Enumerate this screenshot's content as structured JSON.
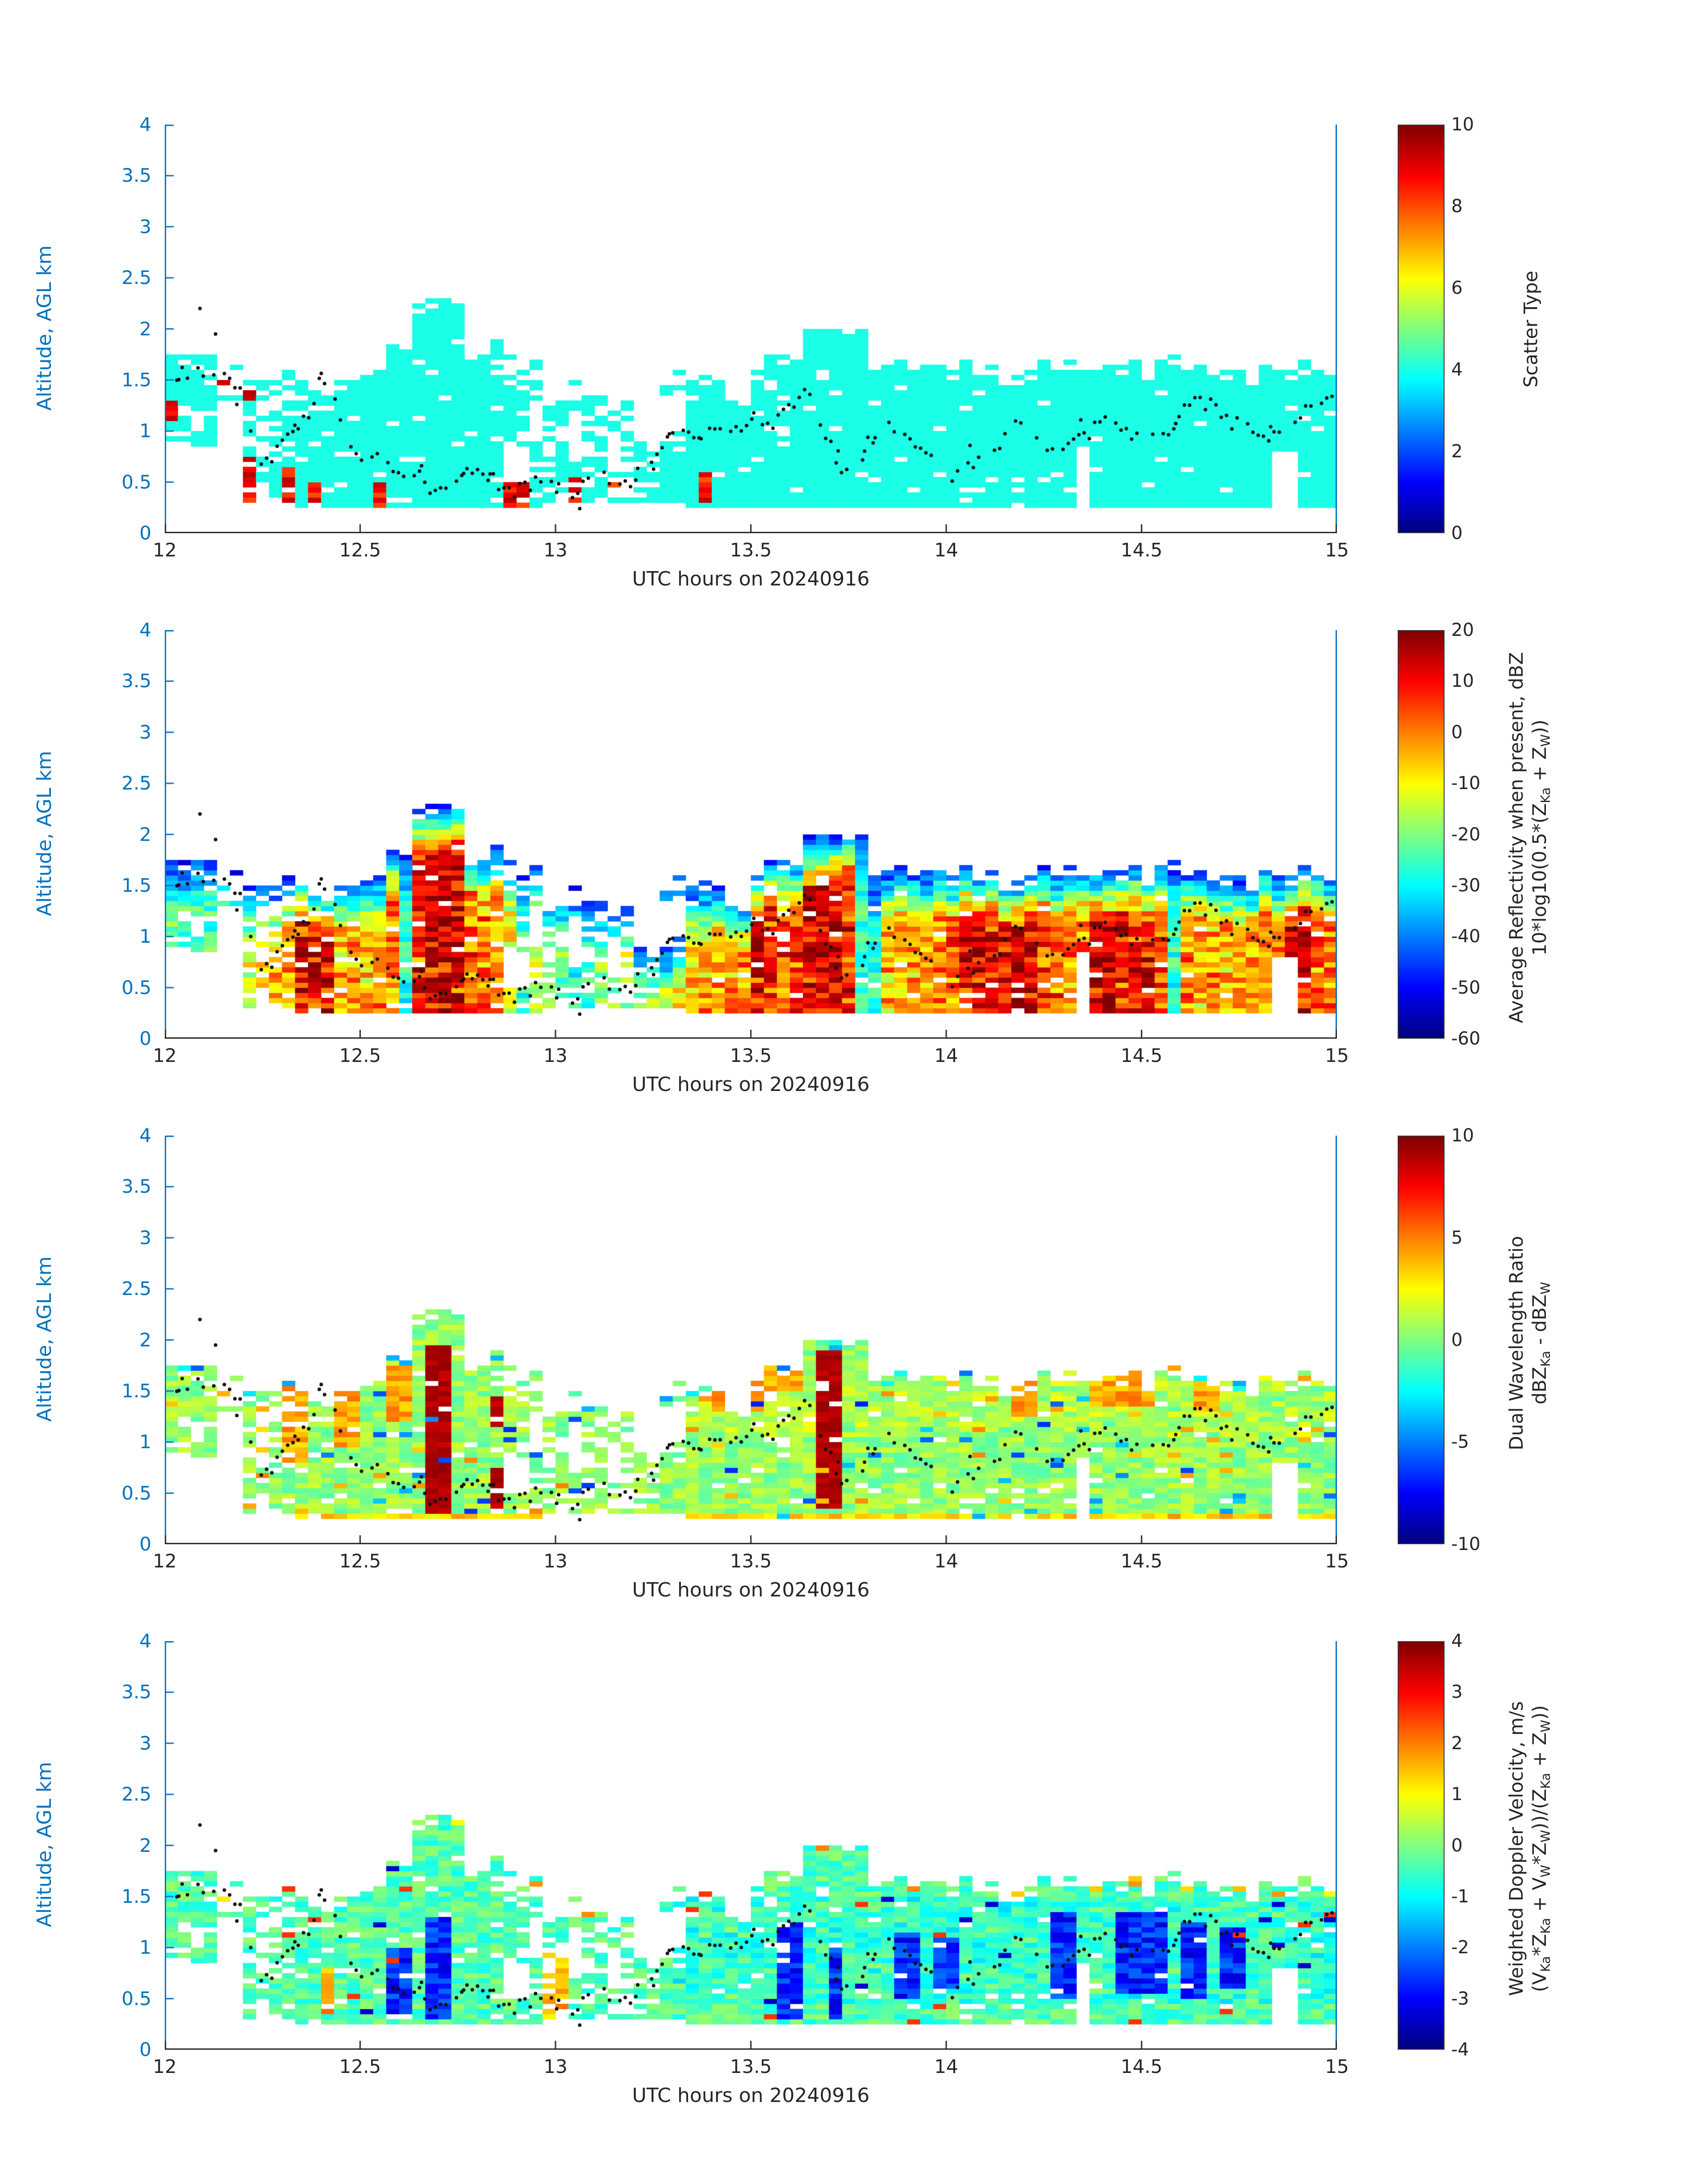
{
  "figure": {
    "xlabel": "UTC hours on 20240916",
    "ylabel": "Altitude, AGL km",
    "x_ticks": [
      12,
      12.5,
      13,
      13.5,
      14,
      14.5,
      15
    ],
    "y_ticks": [
      0,
      0.5,
      1,
      1.5,
      2,
      2.5,
      3,
      3.5,
      4
    ],
    "x_range": [
      12,
      15
    ],
    "y_range": [
      0,
      4
    ],
    "left_axis_color": "#0072BD",
    "bottom_axis_color": "#262626",
    "dot_color": "#111111",
    "background": "#ffffff"
  },
  "cloud": {
    "segments": [
      [
        12.0,
        12.13,
        0.85,
        1.85,
        0.82
      ],
      [
        12.13,
        12.2,
        1.3,
        1.78,
        0.3
      ],
      [
        12.2,
        12.3,
        0.3,
        1.65,
        0.55
      ],
      [
        12.3,
        12.56,
        0.25,
        1.62,
        0.88
      ],
      [
        12.56,
        12.63,
        0.25,
        1.95,
        0.9
      ],
      [
        12.63,
        12.77,
        0.25,
        2.35,
        0.93
      ],
      [
        12.77,
        12.88,
        0.25,
        1.95,
        0.9
      ],
      [
        12.88,
        12.98,
        0.25,
        1.78,
        0.72
      ],
      [
        12.98,
        13.08,
        0.28,
        1.55,
        0.62
      ],
      [
        13.08,
        13.2,
        0.3,
        1.4,
        0.5
      ],
      [
        13.2,
        13.34,
        0.28,
        1.05,
        0.8
      ],
      [
        13.24,
        13.44,
        1.35,
        1.62,
        0.55
      ],
      [
        13.34,
        13.5,
        0.25,
        1.5,
        0.95
      ],
      [
        13.5,
        13.62,
        0.25,
        1.78,
        0.96
      ],
      [
        13.62,
        13.8,
        0.25,
        2.1,
        0.96
      ],
      [
        13.8,
        14.2,
        0.25,
        1.72,
        0.96
      ],
      [
        14.2,
        14.6,
        0.25,
        1.75,
        0.96
      ],
      [
        14.6,
        15.0,
        0.25,
        1.72,
        0.96
      ]
    ],
    "holes": [
      [
        12.88,
        12.93,
        0.5,
        0.85
      ],
      [
        12.93,
        12.97,
        0.9,
        1.3
      ],
      [
        13.12,
        13.18,
        0.6,
        1.0
      ],
      [
        14.33,
        14.37,
        0.0,
        0.85
      ],
      [
        14.84,
        14.9,
        0.0,
        0.78
      ]
    ]
  },
  "dots": {
    "trace": [
      [
        12.0,
        1.25
      ],
      [
        12.04,
        1.55
      ],
      [
        12.08,
        1.6
      ],
      [
        12.12,
        1.55
      ],
      [
        12.16,
        1.6
      ],
      [
        12.2,
        1.3
      ],
      [
        12.24,
        0.6
      ],
      [
        12.28,
        0.75
      ],
      [
        12.32,
        1.0
      ],
      [
        12.36,
        1.1
      ],
      [
        12.4,
        1.5
      ],
      [
        12.44,
        1.25
      ],
      [
        12.48,
        0.85
      ],
      [
        12.52,
        0.7
      ],
      [
        12.56,
        0.8
      ],
      [
        12.6,
        0.55
      ],
      [
        12.64,
        0.6
      ],
      [
        12.68,
        0.45
      ],
      [
        12.72,
        0.5
      ],
      [
        12.76,
        0.55
      ],
      [
        12.8,
        0.65
      ],
      [
        12.84,
        0.55
      ],
      [
        12.88,
        0.4
      ],
      [
        12.92,
        0.45
      ],
      [
        12.96,
        0.5
      ],
      [
        13.0,
        0.45
      ],
      [
        13.04,
        0.35
      ],
      [
        13.08,
        0.5
      ],
      [
        13.12,
        0.55
      ],
      [
        13.16,
        0.5
      ],
      [
        13.2,
        0.45
      ],
      [
        13.24,
        0.7
      ],
      [
        13.28,
        0.9
      ],
      [
        13.32,
        1.0
      ],
      [
        13.36,
        0.95
      ],
      [
        13.4,
        1.0
      ],
      [
        13.44,
        1.0
      ],
      [
        13.48,
        1.05
      ],
      [
        13.52,
        1.05
      ],
      [
        13.56,
        1.1
      ],
      [
        13.6,
        1.25
      ],
      [
        13.64,
        1.4
      ],
      [
        13.68,
        1.1
      ],
      [
        13.72,
        0.7
      ],
      [
        13.76,
        0.55
      ],
      [
        13.8,
        0.9
      ],
      [
        13.84,
        1.05
      ],
      [
        13.88,
        0.95
      ],
      [
        13.92,
        0.85
      ],
      [
        13.96,
        0.7
      ],
      [
        14.0,
        0.55
      ],
      [
        14.04,
        0.6
      ],
      [
        14.08,
        0.75
      ],
      [
        14.12,
        0.8
      ],
      [
        14.16,
        1.0
      ],
      [
        14.2,
        1.1
      ],
      [
        14.24,
        0.9
      ],
      [
        14.28,
        0.85
      ],
      [
        14.32,
        0.9
      ],
      [
        14.36,
        0.95
      ],
      [
        14.4,
        1.1
      ],
      [
        14.44,
        1.05
      ],
      [
        14.48,
        0.95
      ],
      [
        14.52,
        0.9
      ],
      [
        14.56,
        0.95
      ],
      [
        14.6,
        1.15
      ],
      [
        14.64,
        1.3
      ],
      [
        14.68,
        1.25
      ],
      [
        14.72,
        1.1
      ],
      [
        14.76,
        1.05
      ],
      [
        14.8,
        1.0
      ],
      [
        14.84,
        0.95
      ],
      [
        14.88,
        1.1
      ],
      [
        14.92,
        1.2
      ],
      [
        14.96,
        1.3
      ],
      [
        15.0,
        1.4
      ]
    ],
    "outliers": [
      [
        12.09,
        2.2
      ],
      [
        12.13,
        1.95
      ]
    ],
    "step": 0.0135,
    "jitter": 0.14,
    "radius": 4
  },
  "chart_data": [
    {
      "name": "scatter-type",
      "type": "heatmap",
      "mode": "flat",
      "xlabel": "UTC hours on 20240916",
      "ylabel": "Altitude, AGL km",
      "x_range": [
        12,
        15
      ],
      "y_range": [
        0,
        4
      ],
      "colormap": "jet",
      "clim": [
        0,
        10
      ],
      "colorbar_ticks": [
        0,
        2,
        4,
        6,
        8,
        10
      ],
      "colorbar_label_lines": [
        [
          {
            "t": "Scatter Type"
          }
        ]
      ],
      "seed": 101,
      "base_value": 4,
      "red_value": 8.7,
      "red_cells": [
        [
          12.0,
          12.03,
          1.1,
          1.3
        ],
        [
          12.145,
          12.175,
          1.45,
          1.6
        ],
        [
          12.21,
          12.245,
          0.3,
          0.75
        ],
        [
          12.21,
          12.24,
          1.3,
          1.45
        ],
        [
          12.295,
          12.33,
          0.25,
          0.65
        ],
        [
          12.36,
          12.385,
          0.25,
          0.5
        ],
        [
          12.55,
          12.575,
          0.25,
          0.5
        ],
        [
          12.63,
          12.65,
          0.25,
          0.42
        ],
        [
          12.865,
          12.935,
          0.25,
          0.55
        ],
        [
          13.04,
          13.065,
          0.3,
          0.55
        ],
        [
          13.13,
          13.155,
          0.35,
          0.55
        ],
        [
          13.36,
          13.39,
          0.3,
          0.6
        ]
      ]
    },
    {
      "name": "average-reflectivity",
      "type": "heatmap",
      "mode": "layered",
      "xlabel": "UTC hours on 20240916",
      "ylabel": "Altitude, AGL km",
      "x_range": [
        12,
        15
      ],
      "y_range": [
        0,
        4
      ],
      "colormap": "jet",
      "clim": [
        -60,
        20
      ],
      "colorbar_ticks": [
        -60,
        -50,
        -40,
        -30,
        -20,
        -10,
        0,
        10,
        20
      ],
      "colorbar_label_lines": [
        [
          {
            "t": "Average Reflectivity when present, dBZ"
          }
        ],
        [
          {
            "t": "10*log10(0.5*(Z"
          },
          {
            "s": "Ka"
          },
          {
            "t": " + Z"
          },
          {
            "s": "W"
          },
          {
            "t": "))"
          }
        ]
      ],
      "seed": 202,
      "edge_value": -48,
      "core_min": -34,
      "core_max": 16,
      "depth_scale": 0.5,
      "noise": 7,
      "intensity": [
        [
          12.0,
          0.25
        ],
        [
          12.1,
          0.2
        ],
        [
          12.2,
          0.35
        ],
        [
          12.3,
          0.6
        ],
        [
          12.4,
          0.65
        ],
        [
          12.5,
          0.55
        ],
        [
          12.6,
          0.7
        ],
        [
          12.67,
          0.95
        ],
        [
          12.72,
          1.0
        ],
        [
          12.78,
          0.75
        ],
        [
          12.85,
          0.65
        ],
        [
          12.92,
          0.4
        ],
        [
          13.0,
          0.3
        ],
        [
          13.1,
          0.25
        ],
        [
          13.2,
          0.35
        ],
        [
          13.3,
          0.45
        ],
        [
          13.4,
          0.6
        ],
        [
          13.5,
          0.65
        ],
        [
          13.6,
          0.75
        ],
        [
          13.67,
          0.95
        ],
        [
          13.72,
          1.0
        ],
        [
          13.78,
          0.7
        ],
        [
          13.85,
          0.55
        ],
        [
          13.95,
          0.6
        ],
        [
          14.05,
          0.8
        ],
        [
          14.12,
          0.85
        ],
        [
          14.2,
          0.8
        ],
        [
          14.3,
          0.65
        ],
        [
          14.4,
          0.8
        ],
        [
          14.5,
          0.85
        ],
        [
          14.6,
          0.65
        ],
        [
          14.7,
          0.6
        ],
        [
          14.8,
          0.65
        ],
        [
          14.9,
          0.7
        ],
        [
          15.0,
          0.65
        ]
      ],
      "hot_columns": [
        [
          12.35,
          12.42
        ],
        [
          13.5,
          13.56
        ],
        [
          14.05,
          14.15
        ],
        [
          14.18,
          14.23
        ],
        [
          14.38,
          14.45
        ],
        [
          14.48,
          14.55
        ],
        [
          14.88,
          14.95
        ]
      ],
      "cold_columns": [
        [
          12.59,
          12.62
        ],
        [
          12.905,
          12.94
        ],
        [
          13.04,
          13.1
        ],
        [
          13.77,
          13.82
        ],
        [
          14.57,
          14.61
        ]
      ]
    },
    {
      "name": "dual-wavelength-ratio",
      "type": "heatmap",
      "mode": "dwr",
      "xlabel": "UTC hours on 20240916",
      "ylabel": "Altitude, AGL km",
      "x_range": [
        12,
        15
      ],
      "y_range": [
        0,
        4
      ],
      "colormap": "jet",
      "clim": [
        -10,
        10
      ],
      "colorbar_ticks": [
        -10,
        -5,
        0,
        5,
        10
      ],
      "colorbar_label_lines": [
        [
          {
            "t": "Dual Wavelength Ratio"
          }
        ],
        [
          {
            "t": "dBZ"
          },
          {
            "s": "Ka"
          },
          {
            "t": " - dBZ"
          },
          {
            "s": "W"
          }
        ]
      ],
      "seed": 303,
      "base_value": 0.4,
      "noise": 1.3,
      "bottom_boost": 2.0,
      "upper_band": [
        13.28,
        15.0,
        1.05,
        1.78,
        0.9
      ],
      "dark_red_value": 9.6,
      "dark_red": [
        [
          12.68,
          12.73,
          0.3,
          1.95
        ],
        [
          13.67,
          13.73,
          0.35,
          1.9
        ],
        [
          12.83,
          12.87,
          0.35,
          0.75
        ],
        [
          12.83,
          12.86,
          1.15,
          1.45
        ]
      ],
      "red_value": 4.2,
      "red": [
        [
          12.14,
          12.18,
          1.4,
          1.62
        ],
        [
          12.22,
          12.26,
          0.9,
          1.4
        ],
        [
          12.29,
          12.36,
          0.8,
          1.55
        ],
        [
          12.42,
          12.5,
          0.95,
          1.55
        ],
        [
          12.56,
          12.62,
          1.2,
          1.75
        ],
        [
          13.4,
          13.52,
          1.3,
          1.7
        ],
        [
          13.55,
          13.65,
          1.5,
          1.85
        ],
        [
          14.17,
          14.23,
          1.25,
          1.7
        ],
        [
          14.38,
          14.52,
          1.35,
          1.75
        ],
        [
          14.62,
          14.7,
          1.3,
          1.6
        ]
      ]
    },
    {
      "name": "weighted-doppler-velocity",
      "type": "heatmap",
      "mode": "velocity",
      "xlabel": "UTC hours on 20240916",
      "ylabel": "Altitude, AGL km",
      "x_range": [
        12,
        15
      ],
      "y_range": [
        0,
        4
      ],
      "colormap": "jet",
      "clim": [
        -4,
        4
      ],
      "colorbar_ticks": [
        -4,
        -3,
        -2,
        -1,
        0,
        1,
        2,
        3,
        4
      ],
      "colorbar_label_lines": [
        [
          {
            "t": "Weighted Doppler Velocity, m/s"
          }
        ],
        [
          {
            "t": "(V"
          },
          {
            "s": "Ka"
          },
          {
            "t": "*Z"
          },
          {
            "s": "Ka"
          },
          {
            "t": " + V"
          },
          {
            "s": "W"
          },
          {
            "t": "*Z"
          },
          {
            "s": "W"
          },
          {
            "t": "))/(Z"
          },
          {
            "s": "Ka"
          },
          {
            "t": " + Z"
          },
          {
            "s": "W"
          },
          {
            "t": "))"
          }
        ]
      ],
      "seed": 404,
      "base_value": -0.35,
      "noise": 0.55,
      "blue_value": -2.7,
      "blue": [
        [
          12.57,
          12.62,
          0.3,
          1.0
        ],
        [
          12.67,
          12.72,
          0.3,
          1.3
        ],
        [
          13.57,
          13.63,
          0.3,
          1.25
        ],
        [
          13.7,
          13.75,
          0.3,
          1.0
        ],
        [
          13.88,
          13.93,
          0.5,
          1.15
        ],
        [
          13.97,
          14.02,
          0.6,
          1.1
        ],
        [
          14.28,
          14.35,
          0.5,
          1.35
        ],
        [
          14.44,
          14.56,
          0.55,
          1.35
        ],
        [
          14.6,
          14.67,
          0.5,
          1.25
        ],
        [
          14.7,
          14.76,
          0.6,
          1.2
        ]
      ],
      "red_value": 1.6,
      "red": [
        [
          12.145,
          12.175,
          1.42,
          1.6
        ],
        [
          12.4,
          12.44,
          0.35,
          0.8
        ],
        [
          12.97,
          13.03,
          0.3,
          0.95
        ]
      ]
    }
  ]
}
